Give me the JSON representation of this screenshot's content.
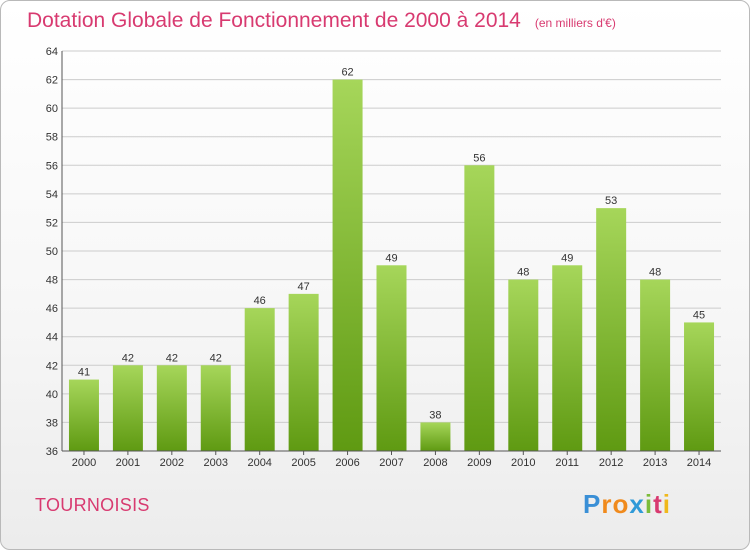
{
  "header": {
    "title": "Dotation Globale de Fonctionnement de 2000 à 2014",
    "unit": "(en milliers d'€)"
  },
  "footer": {
    "commune": "TOURNOISIS",
    "logo_text": "Proxiti",
    "logo_letters": [
      "P",
      "r",
      "o",
      "x",
      "i",
      "t",
      "i"
    ],
    "logo_colors": [
      "#3a8fd6",
      "#f08a1c",
      "#f08a1c",
      "#2f9ad8",
      "#7cbc3a",
      "#d83a70",
      "#f0b81c"
    ]
  },
  "colors": {
    "accent": "#d83a70",
    "bar_light": "#a6d65a",
    "bar_dark": "#5f9a12",
    "grid": "#cccccc",
    "axis": "#555555"
  },
  "chart_data": {
    "type": "bar",
    "title": "Dotation Globale de Fonctionnement de 2000 à 2014",
    "subtitle": "(en milliers d'€)",
    "categories": [
      "2000",
      "2001",
      "2002",
      "2003",
      "2004",
      "2005",
      "2006",
      "2007",
      "2008",
      "2009",
      "2010",
      "2011",
      "2012",
      "2013",
      "2014"
    ],
    "values": [
      41,
      42,
      42,
      42,
      46,
      47,
      62,
      49,
      38,
      56,
      48,
      49,
      53,
      48,
      45
    ],
    "ylim": [
      36,
      64
    ],
    "yticks": [
      36,
      38,
      40,
      42,
      44,
      46,
      48,
      50,
      52,
      54,
      56,
      58,
      60,
      62,
      64
    ],
    "grid": true,
    "legend": "none"
  }
}
